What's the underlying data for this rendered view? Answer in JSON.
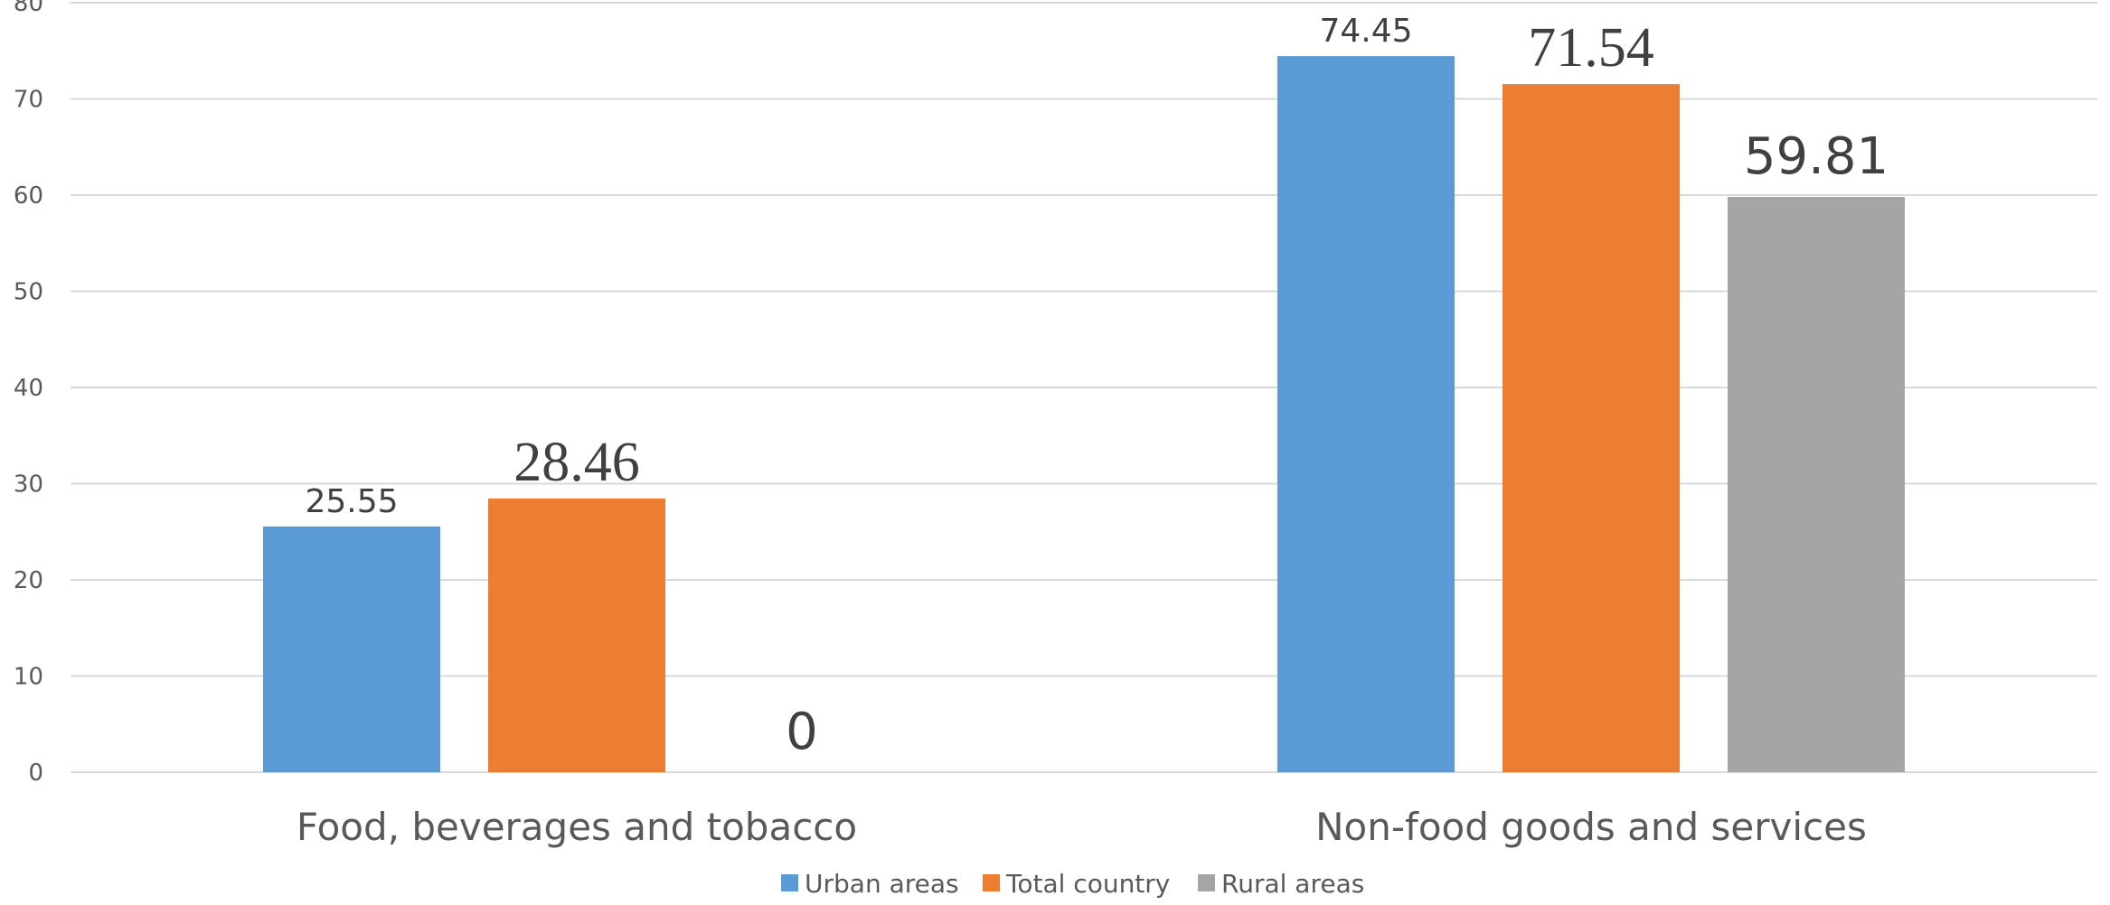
{
  "chart_data": {
    "type": "bar",
    "categories": [
      "Food, beverages and tobacco",
      "Non-food goods and services"
    ],
    "series": [
      {
        "name": "Urban areas",
        "values": [
          25.55,
          74.45
        ],
        "color": "#5B9BD5",
        "label_style": "small"
      },
      {
        "name": "Total country",
        "values": [
          28.46,
          71.54
        ],
        "color": "#ED7D31",
        "label_style": "serif"
      },
      {
        "name": "Rural areas",
        "values": [
          0,
          59.81
        ],
        "color": "#A5A5A5",
        "label_style": "large"
      }
    ],
    "data_labels": [
      [
        "25.55",
        "74.45"
      ],
      [
        "28.46",
        "71.54"
      ],
      [
        "0",
        "59.81"
      ]
    ],
    "y_ticks": [
      "0",
      "10",
      "20",
      "30",
      "40",
      "50",
      "60",
      "70",
      "80"
    ],
    "ylim": [
      0,
      80
    ],
    "grid": true,
    "legend_position": "bottom",
    "gridline_color": "#D9D9D9"
  }
}
